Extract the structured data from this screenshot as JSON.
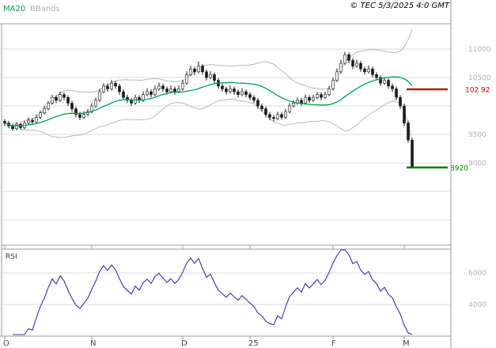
{
  "header": {
    "ma20_label": "MA20",
    "bbands_label": "BBands",
    "timestamp": "© TEC 5/3/2025 4:0 GMT"
  },
  "colors": {
    "ma20": "#00A050",
    "bbands": "#B8B8B8",
    "candle": "#1a1a1a",
    "grid": "#DCDCDC",
    "frame": "#999999",
    "resistance": "#C00000",
    "support": "#008000",
    "rsi": "#3333AA",
    "tick_text": "#B0B0B0",
    "month_text": "#444444",
    "rsi_label_text": "#333333"
  },
  "chart_data": {
    "type": "candlestick",
    "title": "",
    "legend": [
      "MA20",
      "BBands"
    ],
    "x_ticks": [
      {
        "label": "O",
        "index": 0
      },
      {
        "label": "N",
        "index": 22
      },
      {
        "label": "D",
        "index": 45
      },
      {
        "label": "25",
        "index": 62
      },
      {
        "label": "F",
        "index": 83
      },
      {
        "label": "M",
        "index": 101
      }
    ],
    "price_axis": {
      "min": 7550,
      "max": 11430,
      "grid_step": 500,
      "tick_labels": [
        {
          "value": 11000,
          "label": "11000"
        },
        {
          "value": 10500,
          "label": "10500"
        },
        {
          "value": 9500,
          "label": "9500"
        },
        {
          "value": 9000,
          "label": "9000"
        }
      ]
    },
    "levels": [
      {
        "value": 10292,
        "label": "102 92",
        "color": "resistance"
      },
      {
        "value": 8920,
        "label": "8920",
        "color": "support"
      }
    ],
    "indicators": {
      "ma_window": 20,
      "bband_window": 20,
      "bband_mult": 2,
      "rsi_window": 14
    },
    "rsi_axis": {
      "label": "RSI",
      "min": 20,
      "max": 75,
      "ticks": [
        {
          "value": 60,
          "label": "6000"
        },
        {
          "value": 40,
          "label": "4000"
        }
      ]
    },
    "candles": [
      [
        9730,
        9770,
        9650,
        9700
      ],
      [
        9700,
        9740,
        9610,
        9650
      ],
      [
        9650,
        9690,
        9560,
        9600
      ],
      [
        9600,
        9720,
        9570,
        9680
      ],
      [
        9680,
        9710,
        9580,
        9620
      ],
      [
        9620,
        9740,
        9590,
        9700
      ],
      [
        9700,
        9800,
        9670,
        9750
      ],
      [
        9750,
        9790,
        9680,
        9720
      ],
      [
        9720,
        9850,
        9700,
        9800
      ],
      [
        9800,
        9920,
        9770,
        9880
      ],
      [
        9880,
        10000,
        9850,
        9950
      ],
      [
        9950,
        10090,
        9920,
        10050
      ],
      [
        10050,
        10200,
        10020,
        10150
      ],
      [
        10150,
        10190,
        10050,
        10100
      ],
      [
        10100,
        10250,
        10070,
        10200
      ],
      [
        10200,
        10240,
        10100,
        10150
      ],
      [
        10150,
        10190,
        10000,
        10050
      ],
      [
        10050,
        10090,
        9900,
        9950
      ],
      [
        9950,
        9990,
        9800,
        9850
      ],
      [
        9850,
        9900,
        9750,
        9800
      ],
      [
        9800,
        9910,
        9770,
        9850
      ],
      [
        9850,
        9950,
        9820,
        9900
      ],
      [
        9900,
        10050,
        9870,
        10000
      ],
      [
        10000,
        10150,
        9970,
        10100
      ],
      [
        10100,
        10300,
        10070,
        10250
      ],
      [
        10250,
        10400,
        10220,
        10350
      ],
      [
        10350,
        10390,
        10250,
        10300
      ],
      [
        10300,
        10460,
        10270,
        10400
      ],
      [
        10400,
        10440,
        10300,
        10350
      ],
      [
        10350,
        10390,
        10200,
        10250
      ],
      [
        10250,
        10290,
        10100,
        10150
      ],
      [
        10150,
        10200,
        10050,
        10100
      ],
      [
        10100,
        10140,
        10000,
        10050
      ],
      [
        10050,
        10200,
        10020,
        10150
      ],
      [
        10150,
        10190,
        10050,
        10100
      ],
      [
        10100,
        10250,
        10070,
        10200
      ],
      [
        10200,
        10310,
        10170,
        10250
      ],
      [
        10250,
        10290,
        10150,
        10200
      ],
      [
        10200,
        10360,
        10170,
        10300
      ],
      [
        10300,
        10410,
        10270,
        10350
      ],
      [
        10350,
        10390,
        10250,
        10300
      ],
      [
        10300,
        10340,
        10200,
        10250
      ],
      [
        10250,
        10360,
        10220,
        10300
      ],
      [
        10300,
        10340,
        10200,
        10250
      ],
      [
        10250,
        10360,
        10220,
        10300
      ],
      [
        10300,
        10460,
        10270,
        10400
      ],
      [
        10400,
        10610,
        10370,
        10550
      ],
      [
        10550,
        10710,
        10520,
        10650
      ],
      [
        10650,
        10690,
        10540,
        10600
      ],
      [
        10600,
        10780,
        10570,
        10700
      ],
      [
        10700,
        10740,
        10550,
        10600
      ],
      [
        10600,
        10640,
        10450,
        10500
      ],
      [
        10500,
        10610,
        10470,
        10550
      ],
      [
        10550,
        10590,
        10400,
        10450
      ],
      [
        10450,
        10490,
        10300,
        10350
      ],
      [
        10350,
        10390,
        10250,
        10300
      ],
      [
        10300,
        10340,
        10200,
        10250
      ],
      [
        10250,
        10360,
        10220,
        10300
      ],
      [
        10300,
        10340,
        10200,
        10250
      ],
      [
        10250,
        10290,
        10150,
        10200
      ],
      [
        10200,
        10310,
        10170,
        10250
      ],
      [
        10250,
        10290,
        10150,
        10200
      ],
      [
        10200,
        10240,
        10100,
        10150
      ],
      [
        10150,
        10190,
        10050,
        10100
      ],
      [
        10100,
        10140,
        9950,
        10000
      ],
      [
        10000,
        10040,
        9900,
        9950
      ],
      [
        9950,
        9990,
        9800,
        9850
      ],
      [
        9850,
        9890,
        9750,
        9800
      ],
      [
        9800,
        9840,
        9730,
        9780
      ],
      [
        9780,
        9900,
        9750,
        9850
      ],
      [
        9850,
        9890,
        9760,
        9800
      ],
      [
        9800,
        9950,
        9770,
        9900
      ],
      [
        9900,
        10050,
        9870,
        10000
      ],
      [
        10000,
        10100,
        9970,
        10050
      ],
      [
        10050,
        10150,
        10020,
        10100
      ],
      [
        10100,
        10140,
        10000,
        10050
      ],
      [
        10050,
        10200,
        10020,
        10150
      ],
      [
        10150,
        10190,
        10050,
        10100
      ],
      [
        10100,
        10200,
        10070,
        10150
      ],
      [
        10150,
        10250,
        10120,
        10200
      ],
      [
        10200,
        10240,
        10100,
        10150
      ],
      [
        10150,
        10250,
        10120,
        10200
      ],
      [
        10200,
        10350,
        10170,
        10300
      ],
      [
        10300,
        10500,
        10270,
        10450
      ],
      [
        10450,
        10660,
        10420,
        10600
      ],
      [
        10600,
        10810,
        10570,
        10750
      ],
      [
        10750,
        10950,
        10720,
        10900
      ],
      [
        10900,
        10940,
        10750,
        10800
      ],
      [
        10800,
        10840,
        10650,
        10700
      ],
      [
        10700,
        10810,
        10670,
        10750
      ],
      [
        10750,
        10790,
        10600,
        10650
      ],
      [
        10650,
        10690,
        10550,
        10600
      ],
      [
        10600,
        10710,
        10570,
        10650
      ],
      [
        10650,
        10690,
        10500,
        10550
      ],
      [
        10550,
        10590,
        10450,
        10500
      ],
      [
        10500,
        10540,
        10350,
        10400
      ],
      [
        10400,
        10510,
        10370,
        10450
      ],
      [
        10450,
        10490,
        10300,
        10350
      ],
      [
        10350,
        10390,
        10250,
        10300
      ],
      [
        10300,
        10340,
        10100,
        10150
      ],
      [
        10150,
        10190,
        9950,
        10000
      ],
      [
        10000,
        10040,
        9650,
        9700
      ],
      [
        9700,
        9740,
        9350,
        9400
      ],
      [
        9400,
        9440,
        8900,
        8920
      ]
    ]
  }
}
